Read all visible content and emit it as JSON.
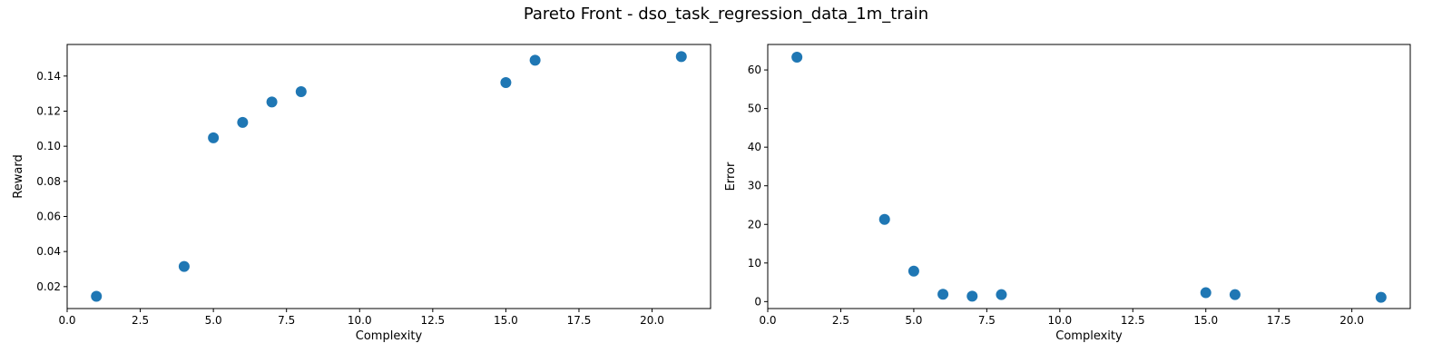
{
  "title": "Pareto Front - dso_task_regression_data_1m_train",
  "marker_color": "#1f77b4",
  "chart_data": [
    {
      "type": "scatter",
      "xlabel": "Complexity",
      "ylabel": "Reward",
      "xlim": [
        0,
        22
      ],
      "ylim": [
        0.0075,
        0.158
      ],
      "xticks": [
        0.0,
        2.5,
        5.0,
        7.5,
        10.0,
        12.5,
        15.0,
        17.5,
        20.0
      ],
      "xtick_labels": [
        "0.0",
        "2.5",
        "5.0",
        "7.5",
        "10.0",
        "12.5",
        "15.0",
        "17.5",
        "20.0"
      ],
      "yticks": [
        0.02,
        0.04,
        0.06,
        0.08,
        0.1,
        0.12,
        0.14
      ],
      "ytick_labels": [
        "0.02",
        "0.04",
        "0.06",
        "0.08",
        "0.10",
        "0.12",
        "0.14"
      ],
      "x": [
        1,
        4,
        5,
        6,
        7,
        8,
        15,
        16,
        21
      ],
      "y": [
        0.0145,
        0.0315,
        0.1048,
        0.1136,
        0.1252,
        0.1311,
        0.1363,
        0.149,
        0.1511
      ]
    },
    {
      "type": "scatter",
      "xlabel": "Complexity",
      "ylabel": "Error",
      "xlim": [
        0,
        22
      ],
      "ylim": [
        -1.8,
        66.6
      ],
      "xticks": [
        0.0,
        2.5,
        5.0,
        7.5,
        10.0,
        12.5,
        15.0,
        17.5,
        20.0
      ],
      "xtick_labels": [
        "0.0",
        "2.5",
        "5.0",
        "7.5",
        "10.0",
        "12.5",
        "15.0",
        "17.5",
        "20.0"
      ],
      "yticks": [
        0,
        10,
        20,
        30,
        40,
        50,
        60
      ],
      "ytick_labels": [
        "0",
        "10",
        "20",
        "30",
        "40",
        "50",
        "60"
      ],
      "x": [
        1,
        4,
        5,
        6,
        7,
        8,
        15,
        16,
        21
      ],
      "y": [
        63.3,
        21.3,
        7.9,
        1.9,
        1.4,
        1.8,
        2.3,
        1.8,
        1.1
      ]
    }
  ]
}
